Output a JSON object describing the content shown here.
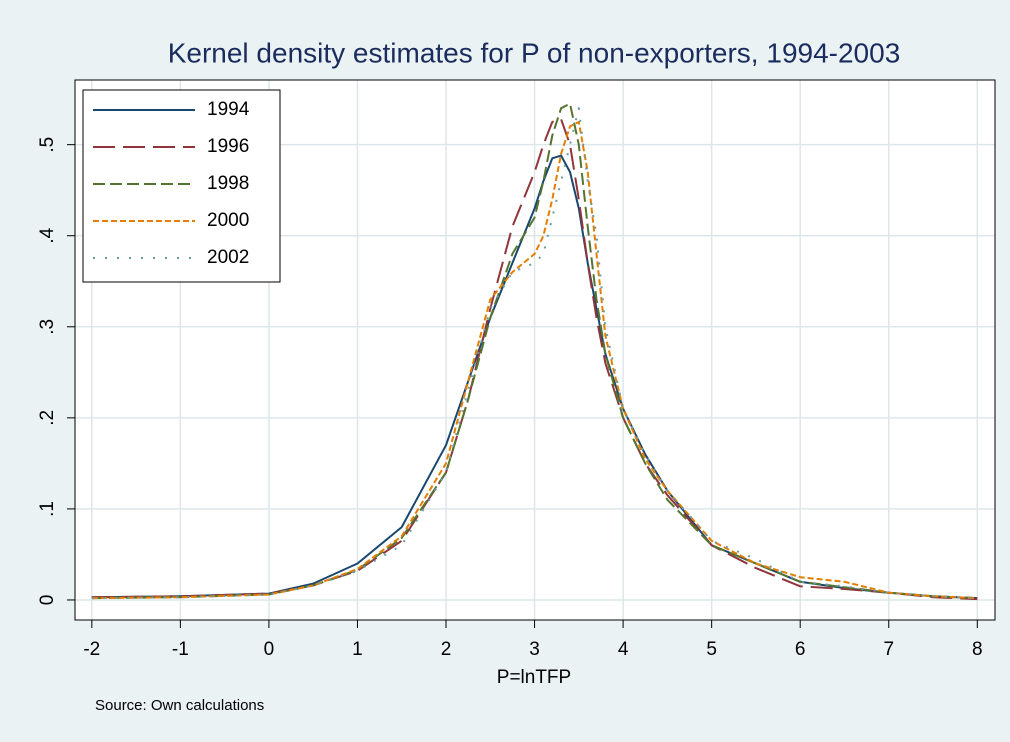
{
  "chart_data": {
    "type": "line",
    "title": "Kernel density estimates for P of non-exporters, 1994-2003",
    "x_label": "P=lnTFP",
    "note": "Source: Own calculations",
    "x": [
      -2,
      -1,
      0,
      0.5,
      1,
      1.5,
      2,
      2.25,
      2.5,
      2.75,
      3,
      3.1,
      3.2,
      3.3,
      3.4,
      3.5,
      3.6,
      3.7,
      3.8,
      4,
      4.25,
      4.5,
      5,
      5.5,
      6,
      6.5,
      7,
      7.5,
      8
    ],
    "series": [
      {
        "name": "1994",
        "color": "#1a476f",
        "values": [
          0.003,
          0.004,
          0.007,
          0.018,
          0.04,
          0.08,
          0.17,
          0.24,
          0.31,
          0.37,
          0.43,
          0.46,
          0.485,
          0.488,
          0.47,
          0.43,
          0.37,
          0.32,
          0.27,
          0.21,
          0.16,
          0.12,
          0.06,
          0.04,
          0.02,
          0.013,
          0.008,
          0.004,
          0.002
        ]
      },
      {
        "name": "1996",
        "color": "#90353b",
        "values": [
          0.003,
          0.004,
          0.007,
          0.016,
          0.032,
          0.065,
          0.14,
          0.22,
          0.32,
          0.41,
          0.47,
          0.5,
          0.525,
          0.528,
          0.5,
          0.44,
          0.37,
          0.31,
          0.26,
          0.2,
          0.15,
          0.115,
          0.06,
          0.035,
          0.015,
          0.012,
          0.008,
          0.003,
          0.001
        ]
      },
      {
        "name": "1998",
        "color": "#55752f",
        "values": [
          0.002,
          0.003,
          0.006,
          0.016,
          0.033,
          0.068,
          0.14,
          0.22,
          0.31,
          0.38,
          0.42,
          0.46,
          0.51,
          0.54,
          0.545,
          0.5,
          0.41,
          0.33,
          0.27,
          0.2,
          0.15,
          0.11,
          0.06,
          0.04,
          0.02,
          0.014,
          0.008,
          0.004,
          0.002
        ]
      },
      {
        "name": "2000",
        "color": "#e37e00",
        "values": [
          0.002,
          0.003,
          0.006,
          0.016,
          0.034,
          0.07,
          0.15,
          0.24,
          0.33,
          0.36,
          0.38,
          0.4,
          0.44,
          0.49,
          0.52,
          0.525,
          0.47,
          0.38,
          0.29,
          0.21,
          0.155,
          0.12,
          0.065,
          0.04,
          0.025,
          0.02,
          0.008,
          0.004,
          0.002
        ]
      },
      {
        "name": "2002",
        "color": "#6a9aa8",
        "values": [
          0.002,
          0.003,
          0.006,
          0.016,
          0.032,
          0.06,
          0.14,
          0.23,
          0.32,
          0.36,
          0.37,
          0.38,
          0.42,
          0.46,
          0.5,
          0.54,
          0.46,
          0.4,
          0.3,
          0.21,
          0.16,
          0.12,
          0.065,
          0.045,
          0.02,
          0.015,
          0.008,
          0.004,
          0.002
        ]
      }
    ],
    "xlim": [
      -2.19,
      8.2
    ],
    "ylim": [
      -0.022,
      0.571
    ],
    "xticks": [
      -2,
      -1,
      0,
      1,
      2,
      3,
      4,
      5,
      6,
      7,
      8
    ],
    "yticks": [
      0,
      {
        "value": 0.1,
        "label": ".1"
      },
      {
        "value": 0.2,
        "label": ".2"
      },
      {
        "value": 0.3,
        "label": ".3"
      },
      {
        "value": 0.4,
        "label": ".4"
      },
      {
        "value": 0.5,
        "label": ".5"
      }
    ],
    "grid": true,
    "legend": "top-left"
  }
}
